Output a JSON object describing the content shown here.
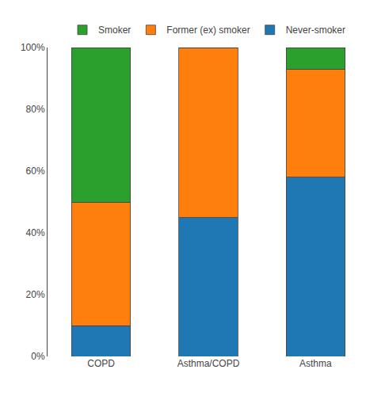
{
  "chart_data": {
    "type": "bar",
    "stacked": true,
    "categories": [
      "COPD",
      "Asthma/COPD",
      "Asthma"
    ],
    "series": [
      {
        "name": "Never-smoker",
        "values": [
          10,
          45,
          58
        ]
      },
      {
        "name": "Former (ex) smoker",
        "values": [
          40,
          55,
          35
        ]
      },
      {
        "name": "Smoker",
        "values": [
          50,
          0,
          7
        ]
      }
    ],
    "ylim": [
      0,
      100
    ],
    "yticks": [
      {
        "value": 0,
        "label": "0%"
      },
      {
        "value": 20,
        "label": "20%"
      },
      {
        "value": 40,
        "label": "40%"
      },
      {
        "value": 60,
        "label": "60%"
      },
      {
        "value": 80,
        "label": "80%"
      },
      {
        "value": 100,
        "label": "100%"
      }
    ],
    "grid": false,
    "legend": "top"
  }
}
